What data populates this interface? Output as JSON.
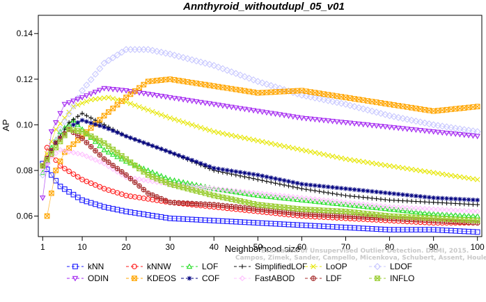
{
  "chart_data": {
    "type": "line",
    "title": "Annthyroid_withoutdupl_05_v01",
    "xlabel": "Neighborhood size",
    "ylabel": "AP",
    "xlim": [
      0,
      101
    ],
    "ylim": [
      0.051,
      0.148
    ],
    "xticks": [
      1,
      10,
      20,
      30,
      40,
      50,
      60,
      70,
      80,
      90,
      100
    ],
    "yticks": [
      0.06,
      0.08,
      0.1,
      0.12,
      0.14
    ],
    "ytick_labels": [
      "0.06",
      "0.08",
      "0.10",
      "0.12",
      "0.14"
    ],
    "grid": false,
    "legend_position": "bottom",
    "credit": "Campos, Zimek, Sander, Campello, Micenkova, Schubert, Assent, Houle",
    "credit_header": "Evaluation of Unsupervised Outlier Detection. DAMI, 2015.",
    "series": [
      {
        "name": "kNN",
        "color": "#1a1aff",
        "marker": "square",
        "points": [
          [
            1,
            0.083
          ],
          [
            3,
            0.078
          ],
          [
            5,
            0.073
          ],
          [
            10,
            0.067
          ],
          [
            15,
            0.064
          ],
          [
            20,
            0.062
          ],
          [
            30,
            0.059
          ],
          [
            40,
            0.058
          ],
          [
            50,
            0.057
          ],
          [
            60,
            0.056
          ],
          [
            70,
            0.055
          ],
          [
            80,
            0.054
          ],
          [
            90,
            0.054
          ],
          [
            100,
            0.053
          ]
        ]
      },
      {
        "name": "kNNW",
        "color": "#ff1a1a",
        "marker": "circle",
        "points": [
          [
            1,
            0.082
          ],
          [
            2,
            0.09
          ],
          [
            3,
            0.087
          ],
          [
            5,
            0.082
          ],
          [
            10,
            0.076
          ],
          [
            15,
            0.072
          ],
          [
            20,
            0.069
          ],
          [
            30,
            0.066
          ],
          [
            40,
            0.064
          ],
          [
            50,
            0.062
          ],
          [
            60,
            0.06
          ],
          [
            70,
            0.059
          ],
          [
            80,
            0.058
          ],
          [
            90,
            0.057
          ],
          [
            100,
            0.057
          ]
        ]
      },
      {
        "name": "LOF",
        "color": "#22dd22",
        "marker": "triangle-up",
        "points": [
          [
            1,
            0.079
          ],
          [
            3,
            0.09
          ],
          [
            5,
            0.097
          ],
          [
            8,
            0.102
          ],
          [
            10,
            0.098
          ],
          [
            15,
            0.089
          ],
          [
            20,
            0.084
          ],
          [
            30,
            0.076
          ],
          [
            40,
            0.072
          ],
          [
            50,
            0.069
          ],
          [
            60,
            0.067
          ],
          [
            70,
            0.065
          ],
          [
            80,
            0.063
          ],
          [
            90,
            0.061
          ],
          [
            100,
            0.06
          ]
        ]
      },
      {
        "name": "SimplifiedLOF",
        "color": "#111111",
        "marker": "plus",
        "points": [
          [
            1,
            0.082
          ],
          [
            4,
            0.092
          ],
          [
            7,
            0.101
          ],
          [
            10,
            0.105
          ],
          [
            15,
            0.1
          ],
          [
            20,
            0.095
          ],
          [
            30,
            0.088
          ],
          [
            40,
            0.08
          ],
          [
            50,
            0.076
          ],
          [
            60,
            0.072
          ],
          [
            70,
            0.069
          ],
          [
            80,
            0.067
          ],
          [
            90,
            0.066
          ],
          [
            100,
            0.065
          ]
        ]
      },
      {
        "name": "LoOP",
        "color": "#e6e600",
        "marker": "cross",
        "points": [
          [
            1,
            0.082
          ],
          [
            4,
            0.098
          ],
          [
            8,
            0.108
          ],
          [
            12,
            0.111
          ],
          [
            16,
            0.112
          ],
          [
            20,
            0.11
          ],
          [
            30,
            0.103
          ],
          [
            40,
            0.097
          ],
          [
            50,
            0.093
          ],
          [
            60,
            0.089
          ],
          [
            70,
            0.085
          ],
          [
            80,
            0.082
          ],
          [
            90,
            0.079
          ],
          [
            100,
            0.076
          ]
        ]
      },
      {
        "name": "LDOF",
        "color": "#c8c8ff",
        "marker": "diamond",
        "points": [
          [
            1,
            0.078
          ],
          [
            5,
            0.098
          ],
          [
            10,
            0.115
          ],
          [
            15,
            0.127
          ],
          [
            20,
            0.133
          ],
          [
            25,
            0.133
          ],
          [
            30,
            0.131
          ],
          [
            40,
            0.126
          ],
          [
            50,
            0.119
          ],
          [
            60,
            0.113
          ],
          [
            70,
            0.109
          ],
          [
            80,
            0.104
          ],
          [
            90,
            0.1
          ],
          [
            100,
            0.097
          ]
        ]
      },
      {
        "name": "ODIN",
        "color": "#a020f0",
        "marker": "triangle-down",
        "points": [
          [
            1,
            0.068
          ],
          [
            3,
            0.097
          ],
          [
            6,
            0.109
          ],
          [
            10,
            0.112
          ],
          [
            15,
            0.116
          ],
          [
            20,
            0.115
          ],
          [
            30,
            0.112
          ],
          [
            40,
            0.109
          ],
          [
            50,
            0.106
          ],
          [
            60,
            0.103
          ],
          [
            70,
            0.101
          ],
          [
            80,
            0.099
          ],
          [
            90,
            0.097
          ],
          [
            100,
            0.095
          ]
        ]
      },
      {
        "name": "KDEOS",
        "color": "#ffa500",
        "marker": "square-x",
        "points": [
          [
            2,
            0.06
          ],
          [
            4,
            0.08
          ],
          [
            6,
            0.088
          ],
          [
            10,
            0.095
          ],
          [
            15,
            0.104
          ],
          [
            20,
            0.112
          ],
          [
            25,
            0.119
          ],
          [
            30,
            0.12
          ],
          [
            40,
            0.117
          ],
          [
            50,
            0.114
          ],
          [
            60,
            0.115
          ],
          [
            70,
            0.112
          ],
          [
            80,
            0.109
          ],
          [
            90,
            0.106
          ],
          [
            100,
            0.108
          ]
        ]
      },
      {
        "name": "COF",
        "color": "#000080",
        "marker": "star",
        "points": [
          [
            1,
            0.082
          ],
          [
            4,
            0.092
          ],
          [
            8,
            0.1
          ],
          [
            10,
            0.102
          ],
          [
            15,
            0.099
          ],
          [
            20,
            0.095
          ],
          [
            30,
            0.088
          ],
          [
            40,
            0.081
          ],
          [
            50,
            0.078
          ],
          [
            60,
            0.074
          ],
          [
            70,
            0.072
          ],
          [
            80,
            0.07
          ],
          [
            90,
            0.068
          ],
          [
            100,
            0.067
          ]
        ]
      },
      {
        "name": "FastABOD",
        "color": "#ffc0ff",
        "marker": "diamond-small",
        "points": [
          [
            1,
            0.08
          ],
          [
            3,
            0.086
          ],
          [
            5,
            0.089
          ],
          [
            10,
            0.087
          ],
          [
            15,
            0.083
          ],
          [
            20,
            0.077
          ],
          [
            30,
            0.074
          ],
          [
            40,
            0.072
          ],
          [
            50,
            0.07
          ],
          [
            60,
            0.068
          ],
          [
            70,
            0.066
          ],
          [
            80,
            0.064
          ],
          [
            90,
            0.063
          ],
          [
            100,
            0.062
          ]
        ]
      },
      {
        "name": "LDF",
        "color": "#a52a2a",
        "marker": "circle-plus",
        "points": [
          [
            1,
            0.082
          ],
          [
            4,
            0.092
          ],
          [
            7,
            0.098
          ],
          [
            10,
            0.094
          ],
          [
            15,
            0.085
          ],
          [
            20,
            0.078
          ],
          [
            25,
            0.07
          ],
          [
            30,
            0.066
          ],
          [
            40,
            0.065
          ],
          [
            50,
            0.063
          ],
          [
            60,
            0.061
          ],
          [
            70,
            0.06
          ],
          [
            80,
            0.059
          ],
          [
            90,
            0.058
          ],
          [
            100,
            0.057
          ]
        ]
      },
      {
        "name": "INFLO",
        "color": "#9acd32",
        "marker": "hourglass",
        "points": [
          [
            1,
            0.082
          ],
          [
            4,
            0.09
          ],
          [
            7,
            0.098
          ],
          [
            10,
            0.097
          ],
          [
            15,
            0.092
          ],
          [
            20,
            0.085
          ],
          [
            25,
            0.078
          ],
          [
            30,
            0.074
          ],
          [
            40,
            0.069
          ],
          [
            50,
            0.065
          ],
          [
            60,
            0.063
          ],
          [
            70,
            0.062
          ],
          [
            80,
            0.06
          ],
          [
            90,
            0.059
          ],
          [
            100,
            0.058
          ]
        ]
      }
    ],
    "legend_rows": [
      [
        "kNN",
        "kNNW",
        "LOF",
        "SimplifiedLOF",
        "LoOP",
        "LDOF"
      ],
      [
        "ODIN",
        "KDEOS",
        "COF",
        "FastABOD",
        "LDF",
        "INFLO"
      ]
    ]
  }
}
